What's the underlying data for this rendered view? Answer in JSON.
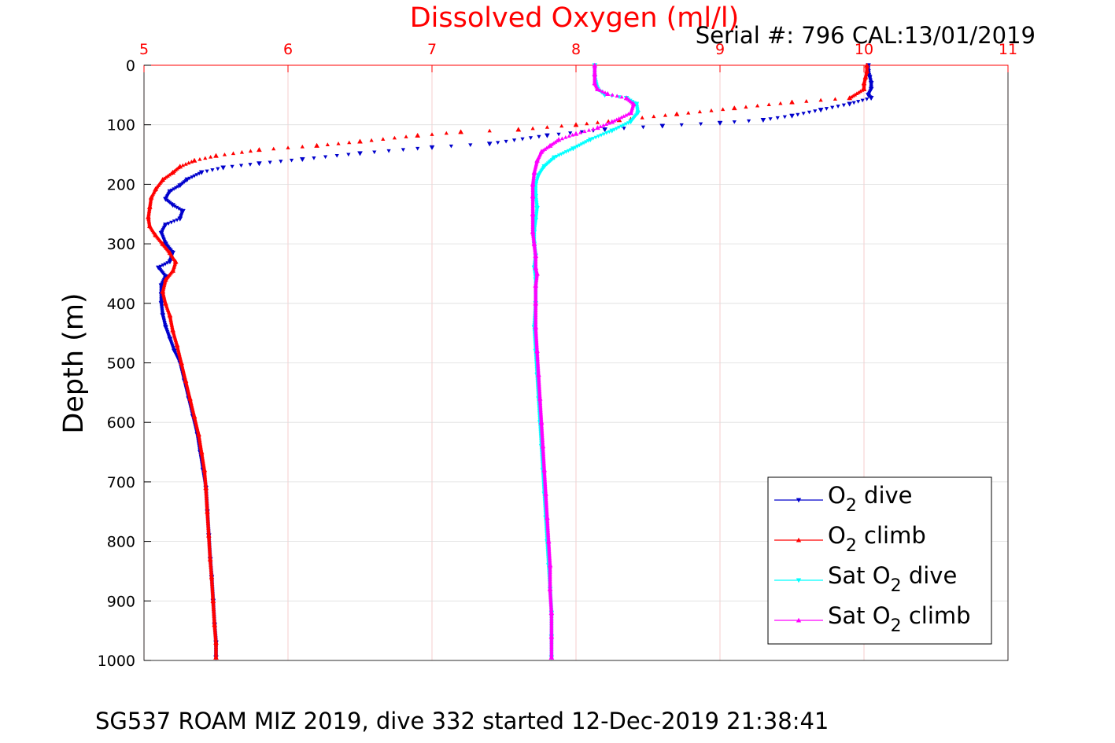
{
  "chart_data": {
    "type": "scatter",
    "title": "Dissolved Oxygen (ml/l)",
    "subtitle": "Serial #: 796  CAL:13/01/2019",
    "ylabel": "Depth (m)",
    "caption": "SG537 ROAM MIZ 2019, dive 332 started 12-Dec-2019 21:38:41",
    "xlim": [
      5,
      11
    ],
    "ylim": [
      0,
      1000
    ],
    "y_reversed": true,
    "x_axis_position": "top",
    "xticks": [
      5,
      6,
      7,
      8,
      9,
      10,
      11
    ],
    "yticks": [
      0,
      100,
      200,
      300,
      400,
      500,
      600,
      700,
      800,
      900,
      1000
    ],
    "grid": true,
    "legend_position": "lower-right",
    "colors": {
      "title": "#ff0000",
      "x_axis": "#ff0000",
      "grid": "#dddddd",
      "x_grid": "#f4c2c2"
    },
    "series": [
      {
        "name": "O2 dive",
        "legend_base": "O",
        "legend_sub": "2",
        "legend_suffix": " dive",
        "color": "#0000cc",
        "marker": "triangle-down",
        "points": [
          [
            10.03,
            0
          ],
          [
            10.03,
            10
          ],
          [
            10.04,
            20
          ],
          [
            10.05,
            30
          ],
          [
            10.05,
            40
          ],
          [
            10.03,
            50
          ],
          [
            10.05,
            55
          ],
          [
            9.9,
            65
          ],
          [
            9.7,
            75
          ],
          [
            9.5,
            85
          ],
          [
            9.3,
            92
          ],
          [
            9.0,
            97
          ],
          [
            8.6,
            102
          ],
          [
            8.2,
            108
          ],
          [
            7.8,
            118
          ],
          [
            7.4,
            132
          ],
          [
            7.0,
            138
          ],
          [
            6.5,
            148
          ],
          [
            6.1,
            158
          ],
          [
            5.8,
            165
          ],
          [
            5.55,
            172
          ],
          [
            5.4,
            180
          ],
          [
            5.3,
            192
          ],
          [
            5.25,
            202
          ],
          [
            5.18,
            212
          ],
          [
            5.15,
            225
          ],
          [
            5.2,
            235
          ],
          [
            5.27,
            245
          ],
          [
            5.25,
            258
          ],
          [
            5.15,
            268
          ],
          [
            5.12,
            282
          ],
          [
            5.15,
            300
          ],
          [
            5.2,
            315
          ],
          [
            5.18,
            330
          ],
          [
            5.1,
            340
          ],
          [
            5.15,
            355
          ],
          [
            5.12,
            370
          ],
          [
            5.12,
            385
          ],
          [
            5.12,
            400
          ],
          [
            5.13,
            420
          ],
          [
            5.15,
            440
          ],
          [
            5.18,
            460
          ],
          [
            5.21,
            480
          ],
          [
            5.25,
            500
          ],
          [
            5.28,
            530
          ],
          [
            5.31,
            560
          ],
          [
            5.34,
            590
          ],
          [
            5.37,
            620
          ],
          [
            5.39,
            650
          ],
          [
            5.41,
            680
          ],
          [
            5.43,
            710
          ],
          [
            5.44,
            750
          ],
          [
            5.45,
            790
          ],
          [
            5.46,
            830
          ],
          [
            5.47,
            860
          ],
          [
            5.48,
            900
          ],
          [
            5.49,
            940
          ],
          [
            5.5,
            970
          ],
          [
            5.5,
            995
          ]
        ]
      },
      {
        "name": "O2 climb",
        "legend_base": "O",
        "legend_sub": "2",
        "legend_suffix": " climb",
        "color": "#ff0000",
        "marker": "triangle-up",
        "points": [
          [
            10.02,
            0
          ],
          [
            10.02,
            10
          ],
          [
            10.01,
            20
          ],
          [
            10.0,
            30
          ],
          [
            10.0,
            40
          ],
          [
            9.9,
            55
          ],
          [
            9.5,
            62
          ],
          [
            9.1,
            72
          ],
          [
            8.7,
            82
          ],
          [
            8.3,
            92
          ],
          [
            8.0,
            100
          ],
          [
            7.6,
            108
          ],
          [
            7.2,
            112
          ],
          [
            6.9,
            118
          ],
          [
            6.5,
            128
          ],
          [
            6.2,
            135
          ],
          [
            5.8,
            142
          ],
          [
            5.5,
            152
          ],
          [
            5.35,
            160
          ],
          [
            5.25,
            170
          ],
          [
            5.2,
            180
          ],
          [
            5.13,
            192
          ],
          [
            5.08,
            208
          ],
          [
            5.05,
            222
          ],
          [
            5.04,
            238
          ],
          [
            5.03,
            255
          ],
          [
            5.04,
            270
          ],
          [
            5.08,
            285
          ],
          [
            5.13,
            300
          ],
          [
            5.18,
            315
          ],
          [
            5.22,
            330
          ],
          [
            5.2,
            345
          ],
          [
            5.15,
            360
          ],
          [
            5.13,
            380
          ],
          [
            5.15,
            400
          ],
          [
            5.18,
            420
          ],
          [
            5.2,
            445
          ],
          [
            5.23,
            470
          ],
          [
            5.26,
            500
          ],
          [
            5.29,
            530
          ],
          [
            5.32,
            560
          ],
          [
            5.35,
            590
          ],
          [
            5.38,
            620
          ],
          [
            5.4,
            650
          ],
          [
            5.42,
            680
          ],
          [
            5.43,
            710
          ],
          [
            5.44,
            750
          ],
          [
            5.45,
            790
          ],
          [
            5.46,
            830
          ],
          [
            5.47,
            860
          ],
          [
            5.48,
            900
          ],
          [
            5.49,
            940
          ],
          [
            5.5,
            970
          ],
          [
            5.5,
            995
          ]
        ]
      },
      {
        "name": "Sat O2 dive",
        "legend_base": "Sat O",
        "legend_sub": "2",
        "legend_suffix": " dive",
        "color": "#00ffff",
        "marker": "triangle-down",
        "points": [
          [
            8.13,
            0
          ],
          [
            8.13,
            20
          ],
          [
            8.15,
            40
          ],
          [
            8.2,
            50
          ],
          [
            8.35,
            55
          ],
          [
            8.42,
            65
          ],
          [
            8.43,
            80
          ],
          [
            8.38,
            95
          ],
          [
            8.25,
            110
          ],
          [
            8.1,
            125
          ],
          [
            7.98,
            140
          ],
          [
            7.85,
            155
          ],
          [
            7.78,
            170
          ],
          [
            7.74,
            185
          ],
          [
            7.72,
            200
          ],
          [
            7.72,
            220
          ],
          [
            7.73,
            240
          ],
          [
            7.72,
            260
          ],
          [
            7.71,
            280
          ],
          [
            7.71,
            300
          ],
          [
            7.72,
            320
          ],
          [
            7.71,
            340
          ],
          [
            7.72,
            360
          ],
          [
            7.72,
            400
          ],
          [
            7.71,
            440
          ],
          [
            7.72,
            480
          ],
          [
            7.73,
            520
          ],
          [
            7.74,
            560
          ],
          [
            7.75,
            600
          ],
          [
            7.76,
            640
          ],
          [
            7.77,
            680
          ],
          [
            7.78,
            720
          ],
          [
            7.79,
            760
          ],
          [
            7.8,
            800
          ],
          [
            7.81,
            840
          ],
          [
            7.82,
            880
          ],
          [
            7.83,
            920
          ],
          [
            7.83,
            960
          ],
          [
            7.83,
            995
          ]
        ]
      },
      {
        "name": "Sat O2 climb",
        "legend_base": "Sat O",
        "legend_sub": "2",
        "legend_suffix": " climb",
        "color": "#ff00ff",
        "marker": "triangle-up",
        "points": [
          [
            8.13,
            0
          ],
          [
            8.13,
            15
          ],
          [
            8.13,
            30
          ],
          [
            8.15,
            40
          ],
          [
            8.22,
            48
          ],
          [
            8.35,
            55
          ],
          [
            8.4,
            65
          ],
          [
            8.38,
            80
          ],
          [
            8.25,
            95
          ],
          [
            8.15,
            105
          ],
          [
            8.0,
            115
          ],
          [
            7.88,
            125
          ],
          [
            7.82,
            135
          ],
          [
            7.76,
            145
          ],
          [
            7.73,
            160
          ],
          [
            7.71,
            180
          ],
          [
            7.7,
            200
          ],
          [
            7.7,
            220
          ],
          [
            7.7,
            250
          ],
          [
            7.7,
            280
          ],
          [
            7.71,
            300
          ],
          [
            7.72,
            320
          ],
          [
            7.72,
            340
          ],
          [
            7.73,
            350
          ],
          [
            7.72,
            370
          ],
          [
            7.72,
            400
          ],
          [
            7.72,
            440
          ],
          [
            7.73,
            480
          ],
          [
            7.74,
            520
          ],
          [
            7.75,
            560
          ],
          [
            7.76,
            600
          ],
          [
            7.77,
            640
          ],
          [
            7.78,
            680
          ],
          [
            7.79,
            720
          ],
          [
            7.8,
            760
          ],
          [
            7.81,
            800
          ],
          [
            7.82,
            840
          ],
          [
            7.82,
            880
          ],
          [
            7.83,
            920
          ],
          [
            7.83,
            960
          ],
          [
            7.83,
            995
          ]
        ]
      }
    ]
  }
}
